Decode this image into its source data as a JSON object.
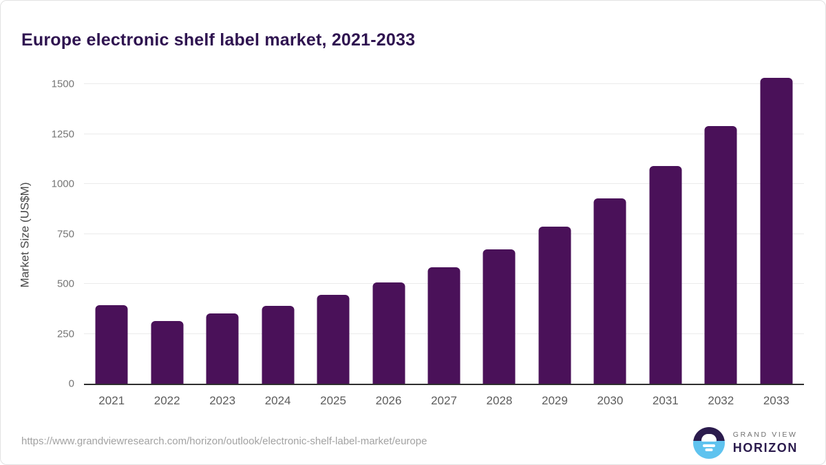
{
  "chart_data": {
    "type": "bar",
    "title": "Europe electronic shelf label market, 2021-2033",
    "xlabel": "",
    "ylabel": "Market Size (US$M)",
    "categories": [
      "2021",
      "2022",
      "2023",
      "2024",
      "2025",
      "2026",
      "2027",
      "2028",
      "2029",
      "2030",
      "2031",
      "2032",
      "2033"
    ],
    "values": [
      393,
      314,
      352,
      391,
      445,
      507,
      582,
      672,
      785,
      928,
      1089,
      1290,
      1530
    ],
    "ylim": [
      0,
      1500
    ],
    "yticks": [
      0,
      250,
      500,
      750,
      1000,
      1250,
      1500
    ],
    "grid": "horizontal-only",
    "legend": false,
    "bar_color": "#4a1159"
  },
  "colors": {
    "bar": "#4a1159",
    "title_text": "#2f1450",
    "axis_line": "#2e2e2e",
    "gridline": "#ebebeb",
    "logo_dark": "#2b1b4d",
    "logo_blue": "#5fc3ef"
  },
  "footer": {
    "source_url": "https://www.grandviewresearch.com/horizon/outlook/electronic-shelf-label-market/europe",
    "logo": {
      "line1": "GRAND VIEW",
      "line2": "HORIZON"
    }
  }
}
